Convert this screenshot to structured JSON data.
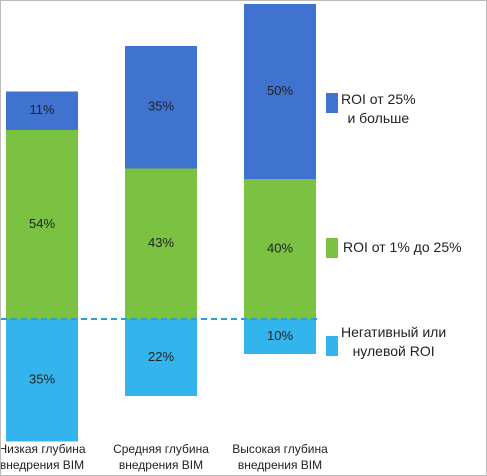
{
  "chart_data": {
    "type": "bar",
    "stacked": true,
    "categories": [
      "Низкая глубина\nвнедрения BIM",
      "Средняя глубина\nвнедрения BIM",
      "Высокая глубина\nвнедрения BIM"
    ],
    "series": [
      {
        "name": "Негативный или\nнулевой ROI",
        "color": "#33b4ec",
        "values": [
          35,
          22,
          10
        ],
        "value_labels": [
          "35%",
          "22%",
          "10%"
        ]
      },
      {
        "name": "ROI от 1% до 25%",
        "color": "#7cc242",
        "values": [
          54,
          43,
          40
        ],
        "value_labels": [
          "54%",
          "43%",
          "40%"
        ]
      },
      {
        "name": "ROI от 25%\nи больше",
        "color": "#3f73cf",
        "values": [
          11,
          35,
          50
        ],
        "value_labels": [
          "11%",
          "35%",
          "50%"
        ]
      }
    ]
  }
}
